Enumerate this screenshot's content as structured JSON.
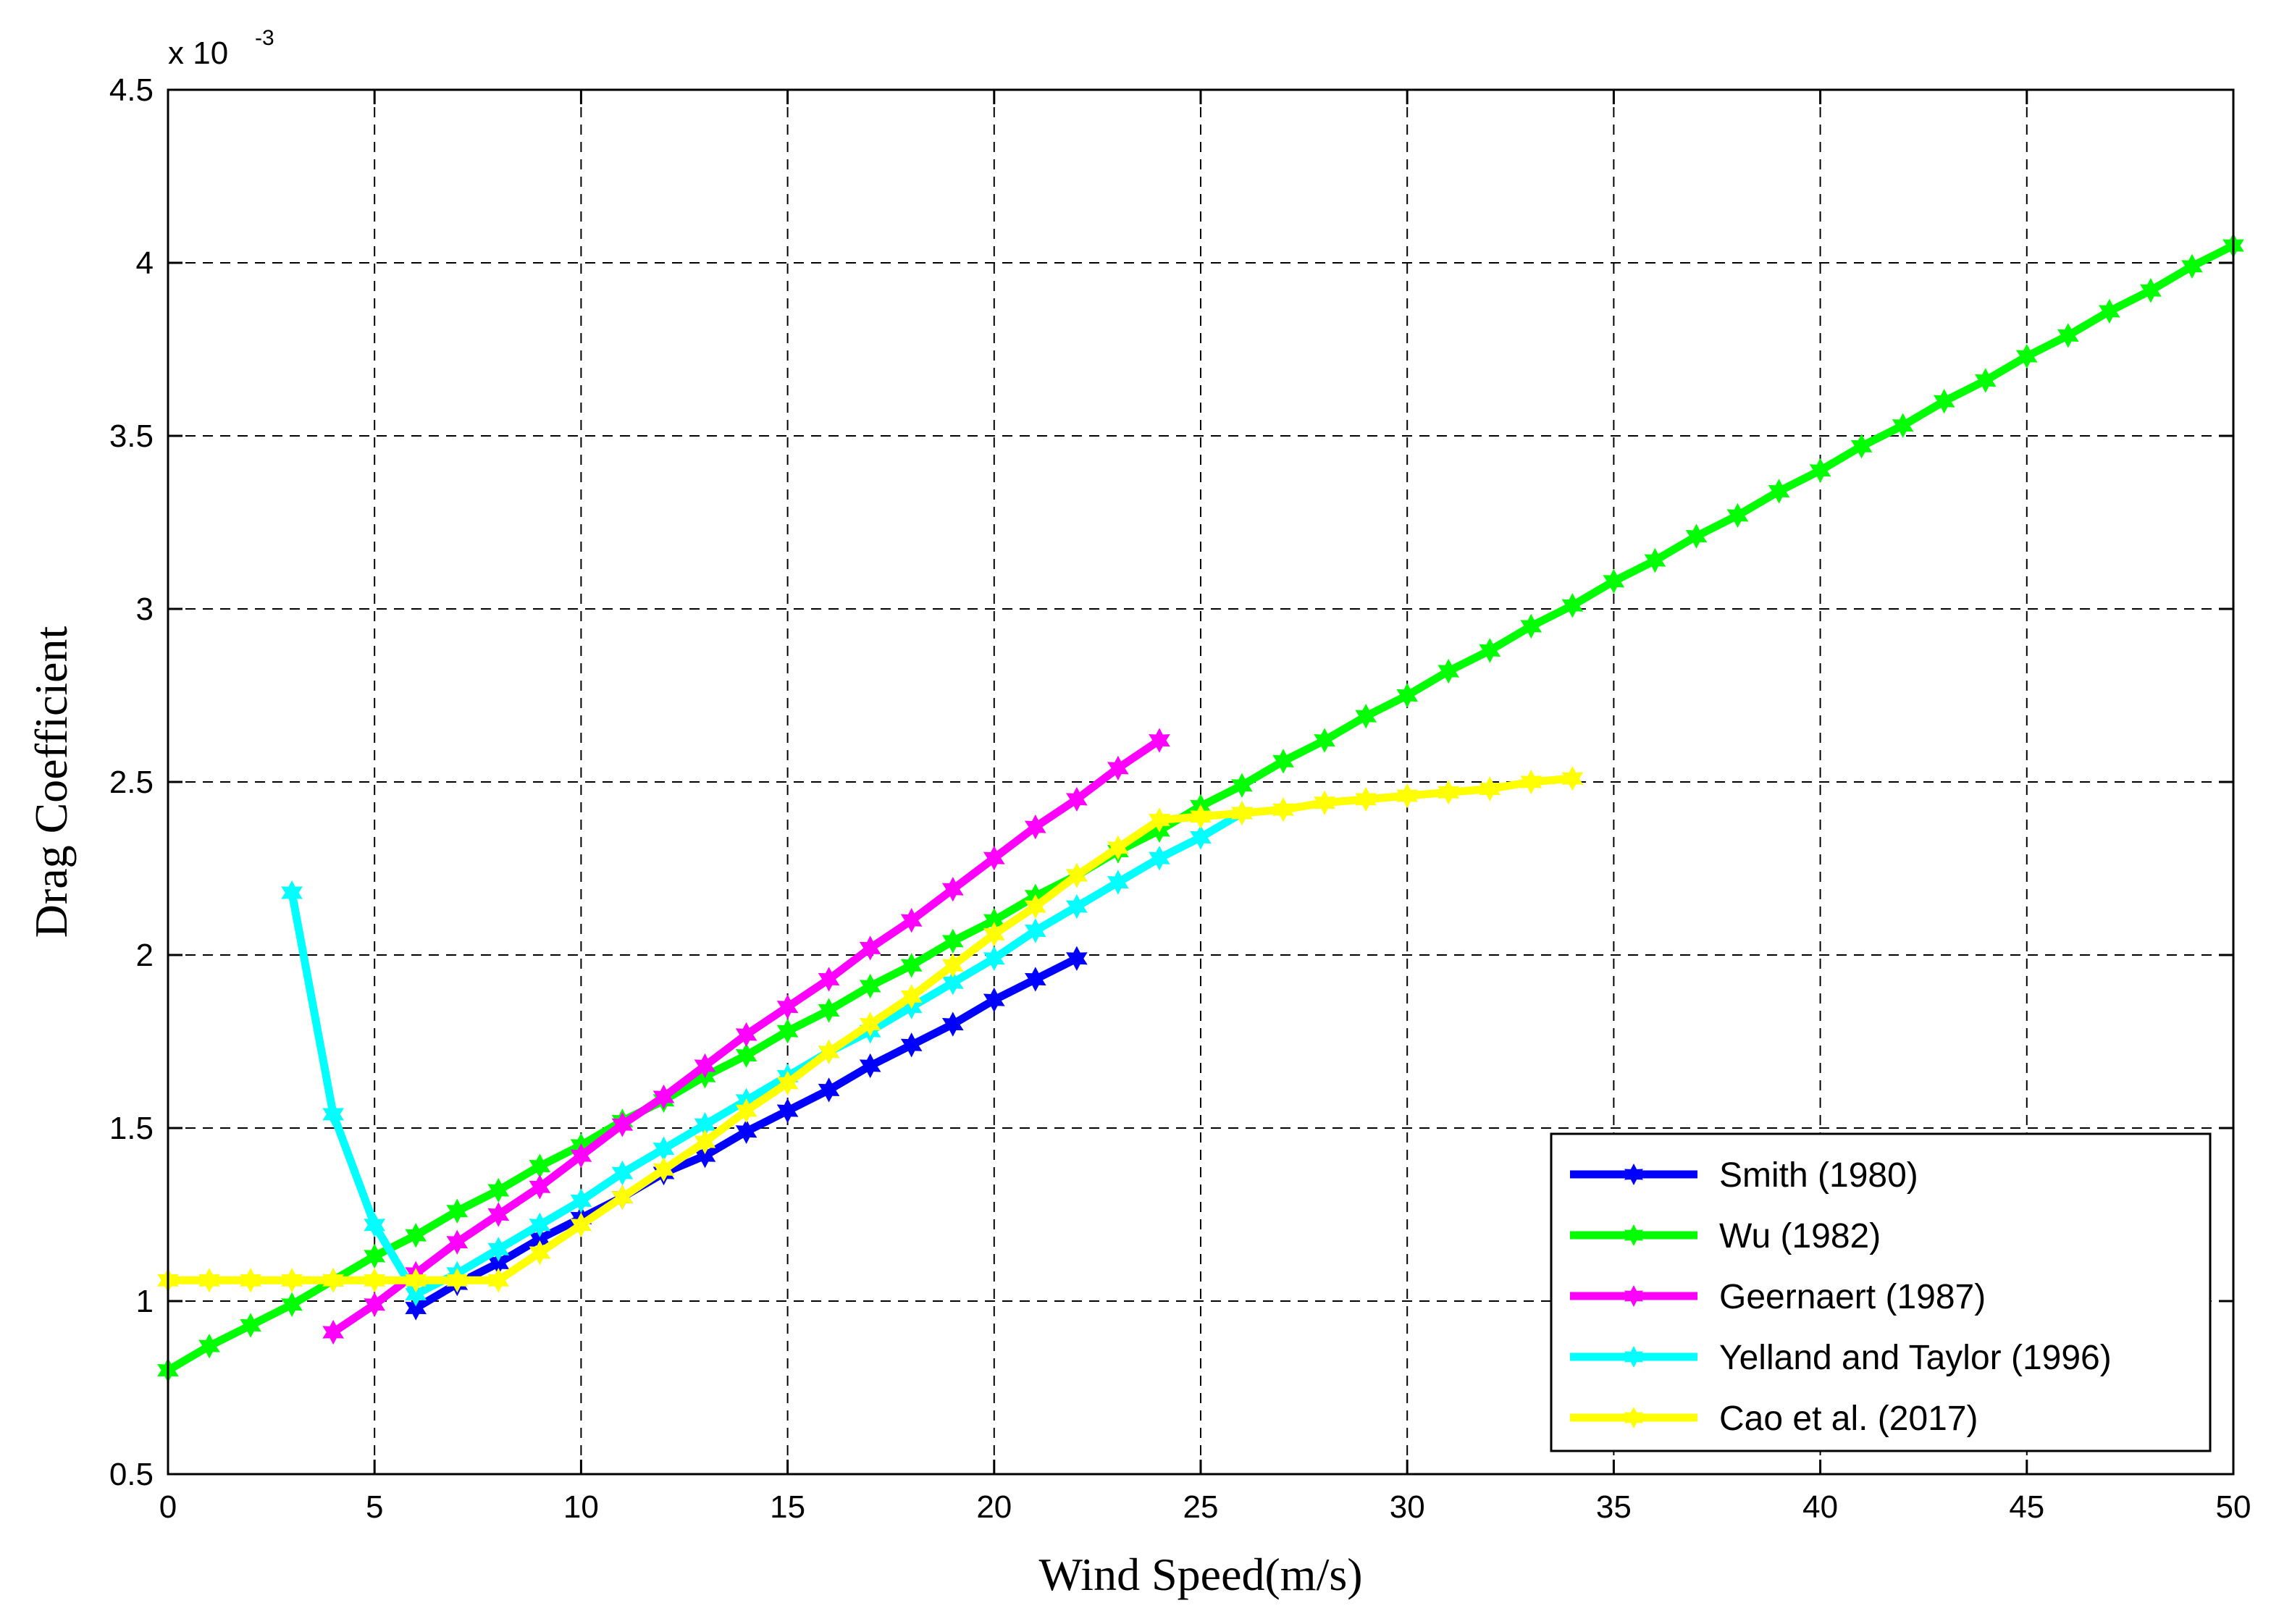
{
  "chart_data": {
    "type": "line",
    "title": "",
    "xlabel": "Wind Speed(m/s)",
    "ylabel": "Drag Coefficient",
    "y_multiplier_label": "x 10",
    "y_multiplier_exponent": "-3",
    "xlim": [
      0,
      50
    ],
    "ylim": [
      0.5,
      4.5
    ],
    "x_ticks": [
      "0",
      "5",
      "10",
      "15",
      "20",
      "25",
      "30",
      "35",
      "40",
      "45",
      "50"
    ],
    "y_ticks": [
      "0.5",
      "1",
      "1.5",
      "2",
      "2.5",
      "3",
      "3.5",
      "4",
      "4.5"
    ],
    "grid": true,
    "legend_position": "bottom-right",
    "series": [
      {
        "name": "Smith (1980)",
        "color": "#0000ff",
        "x": [
          6,
          7,
          8,
          9,
          10,
          11,
          12,
          13,
          14,
          15,
          16,
          17,
          18,
          19,
          20,
          21,
          22
        ],
        "y": [
          0.98,
          1.05,
          1.11,
          1.18,
          1.24,
          1.3,
          1.37,
          1.42,
          1.49,
          1.55,
          1.61,
          1.68,
          1.74,
          1.8,
          1.87,
          1.93,
          1.99
        ]
      },
      {
        "name": "Wu (1982)",
        "color": "#00ff00",
        "x": [
          0,
          1,
          2,
          3,
          4,
          5,
          6,
          7,
          8,
          9,
          10,
          11,
          12,
          13,
          14,
          15,
          16,
          17,
          18,
          19,
          20,
          21,
          22,
          23,
          24,
          25,
          26,
          27,
          28,
          29,
          30,
          31,
          32,
          33,
          34,
          35,
          36,
          37,
          38,
          39,
          40,
          41,
          42,
          43,
          44,
          45,
          46,
          47,
          48,
          49,
          50
        ],
        "y": [
          0.8,
          0.87,
          0.93,
          0.99,
          1.06,
          1.13,
          1.19,
          1.26,
          1.32,
          1.39,
          1.45,
          1.52,
          1.58,
          1.65,
          1.71,
          1.78,
          1.84,
          1.91,
          1.97,
          2.04,
          2.1,
          2.17,
          2.23,
          2.3,
          2.36,
          2.43,
          2.49,
          2.56,
          2.62,
          2.69,
          2.75,
          2.82,
          2.88,
          2.95,
          3.01,
          3.08,
          3.14,
          3.21,
          3.27,
          3.34,
          3.4,
          3.47,
          3.53,
          3.6,
          3.66,
          3.73,
          3.79,
          3.86,
          3.92,
          3.99,
          4.05
        ]
      },
      {
        "name": "Geernaert (1987)",
        "color": "#ff00ff",
        "x": [
          4,
          5,
          6,
          7,
          8,
          9,
          10,
          11,
          12,
          13,
          14,
          15,
          16,
          17,
          18,
          19,
          20,
          21,
          22,
          23,
          24
        ],
        "y": [
          0.91,
          0.99,
          1.08,
          1.17,
          1.25,
          1.33,
          1.42,
          1.51,
          1.59,
          1.68,
          1.77,
          1.85,
          1.93,
          2.02,
          2.1,
          2.19,
          2.28,
          2.37,
          2.45,
          2.54,
          2.62
        ]
      },
      {
        "name": "Yelland and Taylor (1996)",
        "color": "#00ffff",
        "x": [
          3,
          4,
          5,
          6,
          7,
          8,
          9,
          10,
          11,
          12,
          13,
          14,
          15,
          16,
          17,
          18,
          19,
          20,
          21,
          22,
          23,
          24,
          25,
          26
        ],
        "y": [
          2.18,
          1.54,
          1.22,
          1.02,
          1.08,
          1.15,
          1.22,
          1.29,
          1.37,
          1.44,
          1.51,
          1.58,
          1.65,
          1.72,
          1.78,
          1.85,
          1.92,
          1.99,
          2.07,
          2.14,
          2.21,
          2.28,
          2.34,
          2.41
        ]
      },
      {
        "name": "Cao et al. (2017)",
        "color": "#ffff00",
        "x": [
          0,
          1,
          2,
          3,
          4,
          5,
          6,
          7,
          8,
          9,
          10,
          11,
          12,
          13,
          14,
          15,
          16,
          17,
          18,
          19,
          20,
          21,
          22,
          23,
          24,
          25,
          26,
          27,
          28,
          29,
          30,
          31,
          32,
          33,
          34
        ],
        "y": [
          1.06,
          1.06,
          1.06,
          1.06,
          1.06,
          1.06,
          1.06,
          1.06,
          1.06,
          1.14,
          1.22,
          1.3,
          1.38,
          1.46,
          1.55,
          1.63,
          1.72,
          1.8,
          1.88,
          1.97,
          2.06,
          2.14,
          2.23,
          2.31,
          2.39,
          2.4,
          2.41,
          2.42,
          2.44,
          2.45,
          2.46,
          2.47,
          2.48,
          2.5,
          2.51
        ]
      }
    ]
  }
}
